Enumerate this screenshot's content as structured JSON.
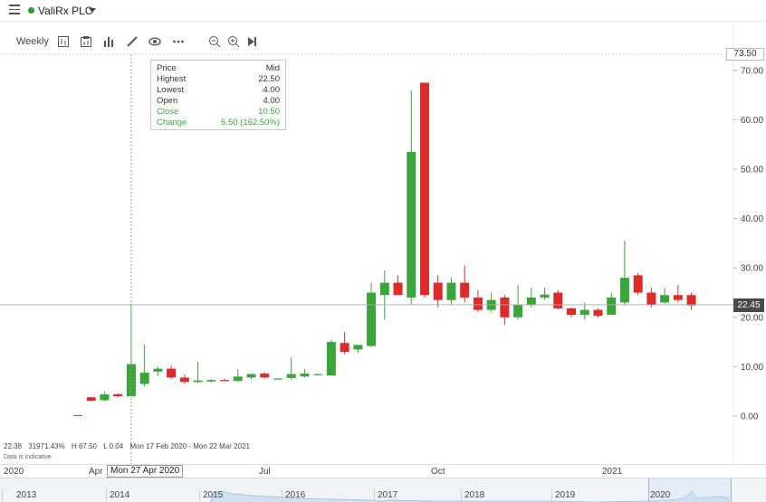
{
  "header": {
    "ticker": "ValiRx PLC",
    "status_color": "#2ba02b"
  },
  "toolbar": {
    "period": "Weekly",
    "icons": [
      "candlestick-chart-icon",
      "chart-settings-icon",
      "bar-chart-icon",
      "draw-pencil-icon",
      "eye-icon",
      "more-icon",
      "zoom-out-icon",
      "zoom-in-icon",
      "play-forward-icon"
    ]
  },
  "tooltip": {
    "header_label": "Price",
    "header_value": "Mid",
    "highest_label": "Highest",
    "highest_value": "22.50",
    "lowest_label": "Lowest",
    "lowest_value": "4.00",
    "open_label": "Open",
    "open_value": "4.00",
    "close_label": "Close",
    "close_value": "10.50",
    "change_label": "Change",
    "change_value": "6.50 (162.50%)"
  },
  "info": {
    "last": "22.38",
    "pct": "31971.43%",
    "high": "H 67.50",
    "low": "L 0.04",
    "range": "Mon 17 Feb 2020 - Mon 22 Mar 2021",
    "note": "Data is indicative"
  },
  "price_tag": "22.45",
  "top_tag": "73.50",
  "x_axis": {
    "labels": [
      "2020",
      "Apr",
      "Jul",
      "Oct",
      "2021"
    ],
    "selected_date": "Mon 27 Apr 2020"
  },
  "navigator": {
    "years": [
      "2013",
      "2014",
      "2015",
      "2016",
      "2017",
      "2018",
      "2019",
      "2020"
    ]
  },
  "colors": {
    "up": "#3aa63a",
    "down": "#dd2a2a",
    "grid": "#e4e4e4"
  },
  "chart_data": {
    "type": "candlestick",
    "frequency": "weekly",
    "y_ticks": [
      "0.00",
      "10.00",
      "20.00",
      "30.00",
      "40.00",
      "50.00",
      "60.00",
      "70.00"
    ],
    "ylim": [
      -1,
      73.5
    ],
    "candles": [
      {
        "o": 0.1,
        "h": 0.2,
        "l": 0.04,
        "c": 0.2
      },
      {
        "o": 3.8,
        "h": 3.9,
        "l": 3.0,
        "c": 3.1
      },
      {
        "o": 3.2,
        "h": 5.0,
        "l": 3.0,
        "c": 4.4
      },
      {
        "o": 4.4,
        "h": 4.6,
        "l": 3.8,
        "c": 4.0
      },
      {
        "o": 4.0,
        "h": 22.5,
        "l": 4.0,
        "c": 10.5
      },
      {
        "o": 6.5,
        "h": 14.5,
        "l": 6.0,
        "c": 8.8
      },
      {
        "o": 9.0,
        "h": 10.0,
        "l": 8.0,
        "c": 9.6
      },
      {
        "o": 9.6,
        "h": 10.3,
        "l": 7.5,
        "c": 7.8
      },
      {
        "o": 7.8,
        "h": 8.4,
        "l": 6.5,
        "c": 6.9
      },
      {
        "o": 6.9,
        "h": 11.0,
        "l": 6.7,
        "c": 7.2
      },
      {
        "o": 7.0,
        "h": 7.5,
        "l": 6.8,
        "c": 7.3
      },
      {
        "o": 7.3,
        "h": 7.6,
        "l": 7.0,
        "c": 7.1
      },
      {
        "o": 7.1,
        "h": 9.5,
        "l": 7.0,
        "c": 8.0
      },
      {
        "o": 7.8,
        "h": 8.6,
        "l": 7.5,
        "c": 8.5
      },
      {
        "o": 8.6,
        "h": 8.9,
        "l": 7.6,
        "c": 7.8
      },
      {
        "o": 7.6,
        "h": 7.7,
        "l": 7.5,
        "c": 7.6
      },
      {
        "o": 7.7,
        "h": 12.0,
        "l": 7.4,
        "c": 8.5
      },
      {
        "o": 8.0,
        "h": 9.5,
        "l": 7.8,
        "c": 8.6
      },
      {
        "o": 8.4,
        "h": 8.6,
        "l": 8.2,
        "c": 8.5
      },
      {
        "o": 8.2,
        "h": 15.5,
        "l": 8.2,
        "c": 15.0
      },
      {
        "o": 14.8,
        "h": 17.0,
        "l": 12.5,
        "c": 13.0
      },
      {
        "o": 13.5,
        "h": 14.5,
        "l": 12.8,
        "c": 14.4
      },
      {
        "o": 14.2,
        "h": 27.0,
        "l": 14.0,
        "c": 25.0
      },
      {
        "o": 24.5,
        "h": 29.5,
        "l": 19.5,
        "c": 27.0
      },
      {
        "o": 27.0,
        "h": 28.5,
        "l": 24.5,
        "c": 24.5
      },
      {
        "o": 24.0,
        "h": 66.0,
        "l": 22.5,
        "c": 53.5
      },
      {
        "o": 67.5,
        "h": 67.5,
        "l": 24.0,
        "c": 24.5
      },
      {
        "o": 27.0,
        "h": 28.5,
        "l": 22.0,
        "c": 23.5
      },
      {
        "o": 23.5,
        "h": 28.0,
        "l": 22.5,
        "c": 27.0
      },
      {
        "o": 27.0,
        "h": 30.5,
        "l": 23.0,
        "c": 24.0
      },
      {
        "o": 24.0,
        "h": 25.5,
        "l": 21.0,
        "c": 21.5
      },
      {
        "o": 21.5,
        "h": 25.0,
        "l": 21.0,
        "c": 23.5
      },
      {
        "o": 24.0,
        "h": 24.5,
        "l": 18.5,
        "c": 20.0
      },
      {
        "o": 20.0,
        "h": 26.5,
        "l": 19.5,
        "c": 22.5
      },
      {
        "o": 22.5,
        "h": 26.0,
        "l": 22.0,
        "c": 24.0
      },
      {
        "o": 24.0,
        "h": 26.0,
        "l": 23.5,
        "c": 24.6
      },
      {
        "o": 25.0,
        "h": 25.5,
        "l": 21.5,
        "c": 21.8
      },
      {
        "o": 21.8,
        "h": 22.0,
        "l": 20.0,
        "c": 20.5
      },
      {
        "o": 20.5,
        "h": 23.0,
        "l": 19.5,
        "c": 21.5
      },
      {
        "o": 21.5,
        "h": 21.8,
        "l": 20.0,
        "c": 20.3
      },
      {
        "o": 20.5,
        "h": 25.0,
        "l": 20.5,
        "c": 24.0
      },
      {
        "o": 23.0,
        "h": 35.5,
        "l": 22.5,
        "c": 28.0
      },
      {
        "o": 28.5,
        "h": 29.0,
        "l": 24.5,
        "c": 25.0
      },
      {
        "o": 25.0,
        "h": 26.0,
        "l": 22.0,
        "c": 22.5
      },
      {
        "o": 23.0,
        "h": 26.0,
        "l": 22.8,
        "c": 24.5
      },
      {
        "o": 24.5,
        "h": 26.5,
        "l": 23.0,
        "c": 23.5
      },
      {
        "o": 24.5,
        "h": 25.0,
        "l": 21.5,
        "c": 22.4
      }
    ]
  }
}
